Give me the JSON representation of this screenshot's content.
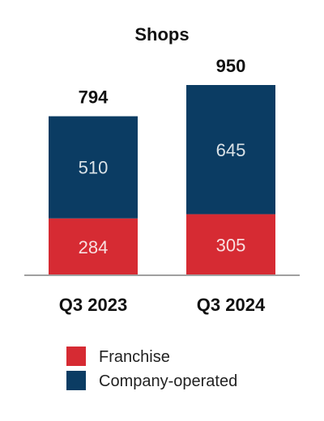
{
  "chart_data": {
    "type": "bar",
    "stacked": true,
    "title": "Shops",
    "xlabel": "",
    "ylabel": "",
    "categories": [
      "Q3 2023",
      "Q3 2024"
    ],
    "series": [
      {
        "name": "Franchise",
        "values": [
          284,
          305
        ],
        "color": "#d62b33"
      },
      {
        "name": "Company-operated",
        "values": [
          510,
          645
        ],
        "color": "#0b3c63"
      }
    ],
    "totals": [
      794,
      950
    ],
    "ylim": [
      0,
      950
    ],
    "grid": false,
    "legend_position": "bottom"
  }
}
